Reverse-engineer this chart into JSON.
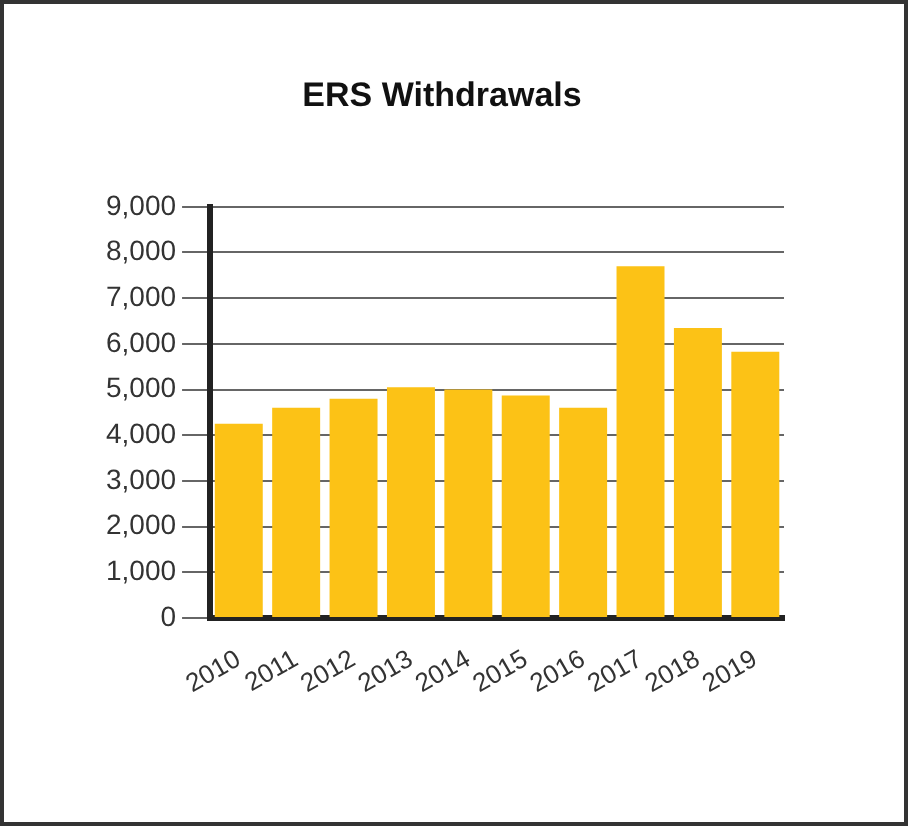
{
  "chart_data": {
    "type": "bar",
    "title": "ERS Withdrawals",
    "categories": [
      "2010",
      "2011",
      "2012",
      "2013",
      "2014",
      "2015",
      "2016",
      "2017",
      "2018",
      "2019"
    ],
    "values": [
      4250,
      4600,
      4800,
      5050,
      5000,
      4870,
      4600,
      7700,
      6350,
      5830
    ],
    "color": "#fcc216",
    "ylim": [
      0,
      9000
    ],
    "yticks": [
      0,
      {
        "value": 1000,
        "label": "1,000"
      },
      {
        "value": 2000,
        "label": "2,000"
      },
      {
        "value": 3000,
        "label": "3,000"
      },
      {
        "value": 4000,
        "label": "4,000"
      },
      {
        "value": 5000,
        "label": "5,000"
      },
      {
        "value": 6000,
        "label": "6,000"
      },
      {
        "value": 7000,
        "label": "7,000"
      },
      {
        "value": 8000,
        "label": "8,000"
      },
      {
        "value": 9000,
        "label": "9,000"
      }
    ],
    "grid": "y",
    "legend": false
  }
}
